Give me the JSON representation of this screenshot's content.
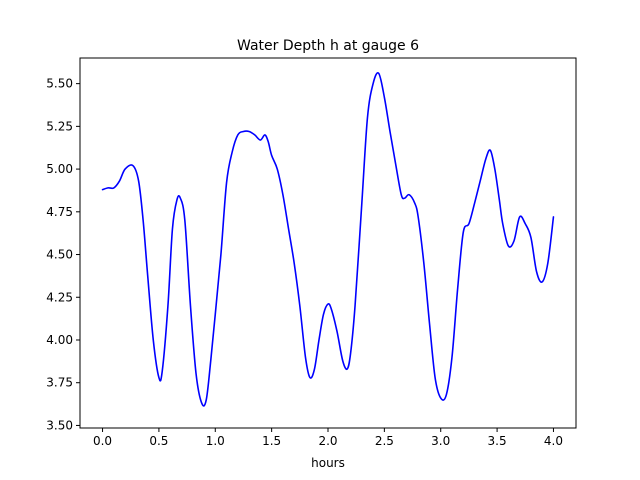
{
  "chart_data": {
    "type": "line",
    "title": "Water Depth h at gauge 6",
    "xlabel": "hours",
    "ylabel": "",
    "xlim": [
      -0.2,
      4.2
    ],
    "ylim": [
      3.485,
      5.65
    ],
    "xticks": [
      0.0,
      0.5,
      1.0,
      1.5,
      2.0,
      2.5,
      3.0,
      3.5,
      4.0
    ],
    "xtick_labels": [
      "0.0",
      "0.5",
      "1.0",
      "1.5",
      "2.0",
      "2.5",
      "3.0",
      "3.5",
      "4.0"
    ],
    "yticks": [
      3.5,
      3.75,
      4.0,
      4.25,
      4.5,
      4.75,
      5.0,
      5.25,
      5.5
    ],
    "ytick_labels": [
      "3.50",
      "3.75",
      "4.00",
      "4.25",
      "4.50",
      "4.75",
      "5.00",
      "5.25",
      "5.50"
    ],
    "grid": false,
    "series": [
      {
        "color": "#0000ff",
        "x": [
          0.0,
          0.05,
          0.1,
          0.15,
          0.2,
          0.27,
          0.32,
          0.36,
          0.4,
          0.45,
          0.5,
          0.53,
          0.58,
          0.62,
          0.66,
          0.69,
          0.73,
          0.78,
          0.83,
          0.88,
          0.92,
          0.96,
          1.0,
          1.05,
          1.1,
          1.15,
          1.2,
          1.25,
          1.3,
          1.35,
          1.4,
          1.44,
          1.47,
          1.5,
          1.55,
          1.6,
          1.65,
          1.7,
          1.75,
          1.8,
          1.84,
          1.88,
          1.92,
          1.96,
          2.0,
          2.03,
          2.08,
          2.13,
          2.17,
          2.2,
          2.24,
          2.3,
          2.35,
          2.4,
          2.45,
          2.5,
          2.55,
          2.6,
          2.65,
          2.68,
          2.72,
          2.77,
          2.8,
          2.85,
          2.9,
          2.95,
          3.0,
          3.05,
          3.1,
          3.15,
          3.2,
          3.25,
          3.3,
          3.35,
          3.4,
          3.44,
          3.48,
          3.52,
          3.55,
          3.6,
          3.65,
          3.7,
          3.75,
          3.8,
          3.85,
          3.9,
          3.95,
          4.0
        ],
        "y": [
          4.88,
          4.89,
          4.89,
          4.93,
          5.0,
          5.02,
          4.93,
          4.7,
          4.38,
          4.0,
          3.78,
          3.82,
          4.2,
          4.65,
          4.82,
          4.83,
          4.7,
          4.2,
          3.8,
          3.63,
          3.65,
          3.88,
          4.15,
          4.5,
          4.92,
          5.1,
          5.2,
          5.22,
          5.22,
          5.2,
          5.17,
          5.2,
          5.16,
          5.08,
          5.0,
          4.85,
          4.65,
          4.45,
          4.2,
          3.9,
          3.78,
          3.83,
          4.0,
          4.15,
          4.21,
          4.18,
          4.05,
          3.88,
          3.83,
          3.92,
          4.2,
          4.8,
          5.3,
          5.5,
          5.56,
          5.42,
          5.22,
          5.03,
          4.85,
          4.83,
          4.85,
          4.8,
          4.72,
          4.45,
          4.1,
          3.78,
          3.66,
          3.68,
          3.9,
          4.3,
          4.63,
          4.68,
          4.8,
          4.93,
          5.06,
          5.11,
          5.0,
          4.82,
          4.68,
          4.55,
          4.58,
          4.72,
          4.68,
          4.6,
          4.4,
          4.34,
          4.45,
          4.72
        ]
      }
    ]
  }
}
